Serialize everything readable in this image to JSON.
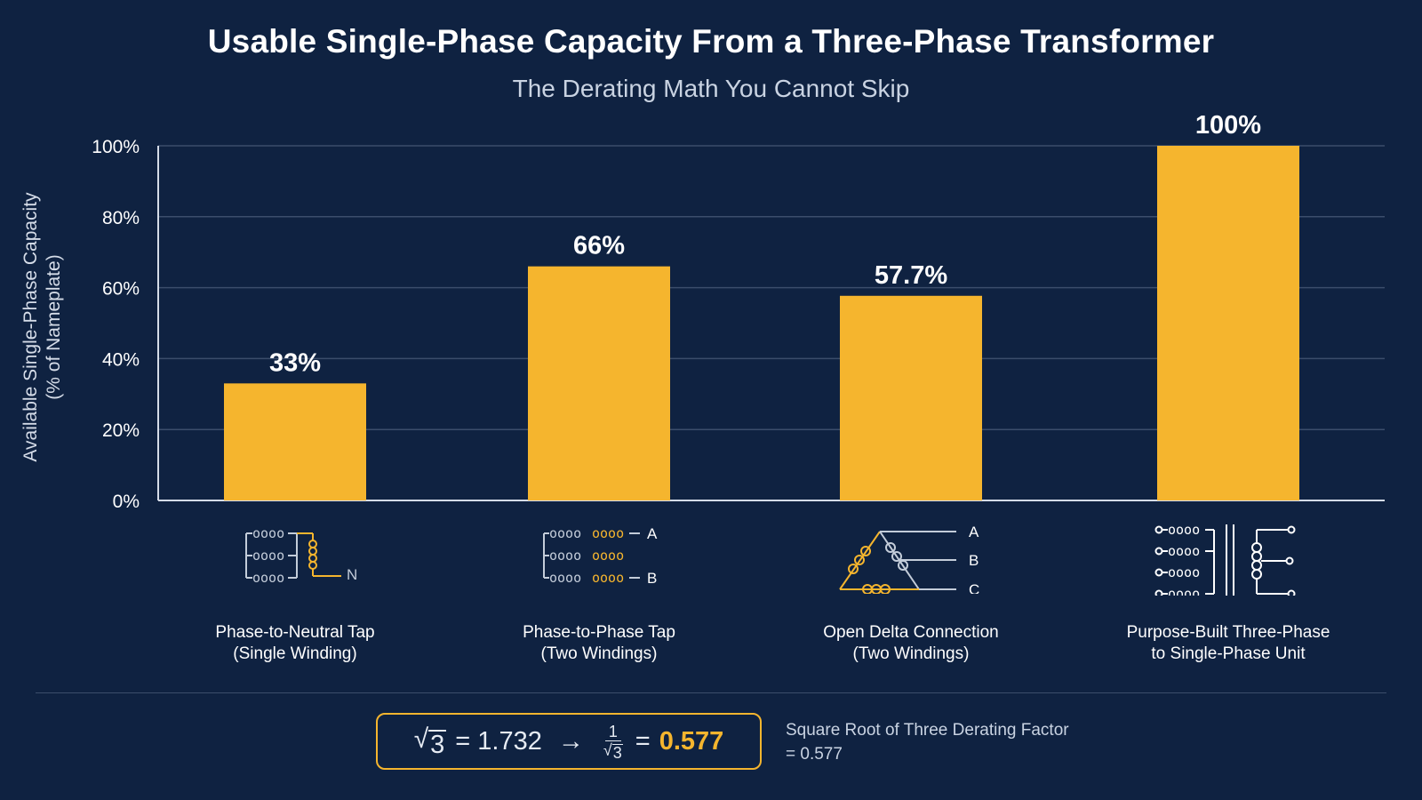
{
  "chart_data": {
    "type": "bar",
    "title": "Usable Single-Phase Capacity From a Three-Phase Transformer",
    "subtitle": "The Derating Math You Cannot Skip",
    "ylabel_line1": "Available Single-Phase Capacity",
    "ylabel_line2": "(% of Nameplate)",
    "ylim": [
      0,
      100
    ],
    "yticks": [
      "0%",
      "20%",
      "40%",
      "60%",
      "80%",
      "100%"
    ],
    "ytick_values": [
      0,
      20,
      40,
      60,
      80,
      100
    ],
    "grid": true,
    "categories": [
      {
        "line1": "Phase-to-Neutral Tap",
        "line2": "(Single Winding)"
      },
      {
        "line1": "Phase-to-Phase Tap",
        "line2": "(Two Windings)"
      },
      {
        "line1": "Open Delta Connection",
        "line2": "(Two Windings)"
      },
      {
        "line1": "Purpose-Built Three-Phase",
        "line2": "to Single-Phase Unit"
      }
    ],
    "values": [
      33,
      66,
      57.7,
      100
    ],
    "data_labels": [
      "33%",
      "66%",
      "57.7%",
      "100%"
    ],
    "bar_color": "#f5b52e"
  },
  "icons": {
    "icon1_label": "N",
    "icon2_labels": [
      "A",
      "B"
    ],
    "icon3_labels": [
      "A",
      "B",
      "C"
    ]
  },
  "formula": {
    "sqrt3": "3",
    "equals1": "= 1.732",
    "arrow": "→",
    "frac_num": "1",
    "frac_den": "3",
    "equals2": "=",
    "result": "0.577"
  },
  "note": {
    "line1": "Square Root of Three Derating Factor",
    "line2": "= 0.577"
  },
  "colors": {
    "background": "#0f2241",
    "accent": "#f5b52e",
    "grid": "#3b4d6b"
  }
}
